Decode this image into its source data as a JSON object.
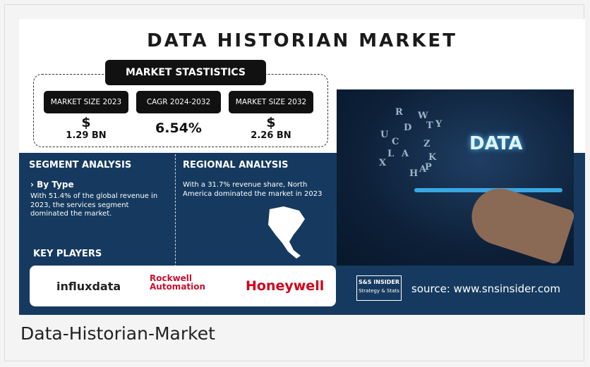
{
  "header": {
    "title": "DATA HISTORIAN MARKET"
  },
  "statistics": {
    "title": "MARKET STASTISTICS",
    "items": [
      {
        "label": "MARKET SIZE 2023",
        "symbol": "$",
        "value": "1.29 BN"
      },
      {
        "label": "CAGR 2024-2032",
        "value": "6.54%"
      },
      {
        "label": "MARKET SIZE 2032",
        "symbol": "$",
        "value": "2.26 BN"
      }
    ]
  },
  "segment": {
    "title": "SEGMENT ANALYSIS",
    "subtitle": "› By Type",
    "text": "With 51.4% of the global revenue in 2023, the services segment dominated the market."
  },
  "regional": {
    "title": "REGIONAL ANALYSIS",
    "text": "With a 31.7% revenue share, North America dominated the market in 2023"
  },
  "key_players": {
    "title": "KEY PLAYERS",
    "players": [
      "influxdata",
      "Rockwell Automation",
      "Honeywell"
    ]
  },
  "image": {
    "word": "DATA",
    "letters": [
      "R",
      "W",
      "U",
      "D",
      "T",
      "Y",
      "C",
      "Z",
      "L",
      "A",
      "K",
      "X",
      "H",
      "A",
      "P"
    ]
  },
  "brand": {
    "logo": "S&S INSIDER",
    "tagline": "Strategy & Stats",
    "source": "source: www.snsinsider.com"
  },
  "caption": "Data-Historian-Market"
}
